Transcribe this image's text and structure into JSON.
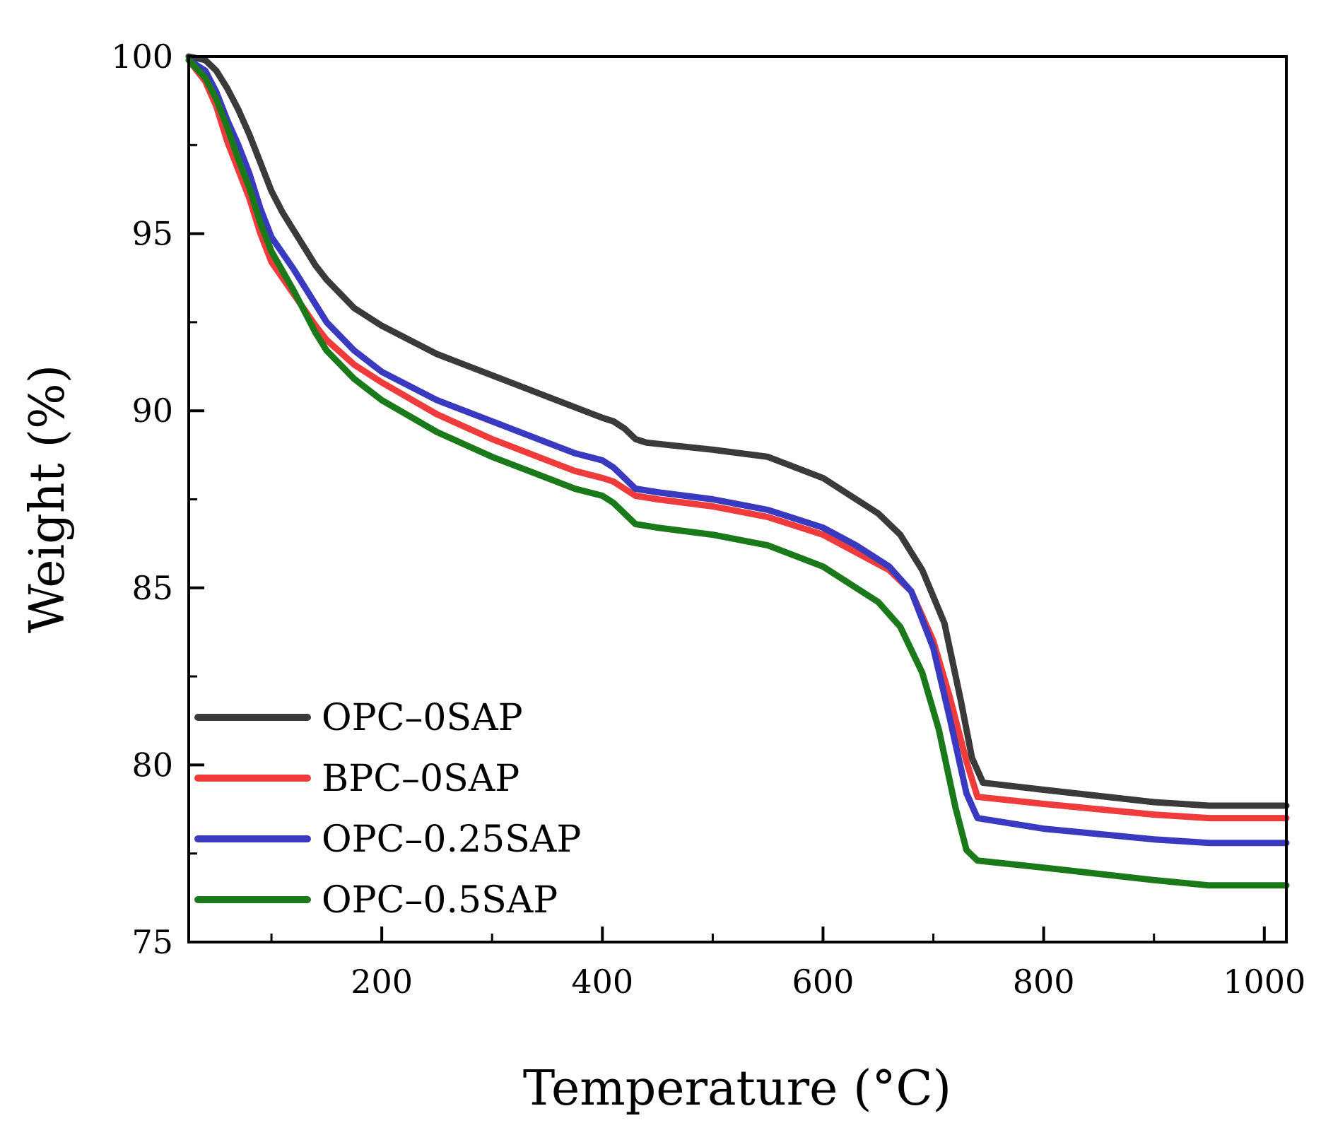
{
  "chart_data": {
    "type": "line",
    "title": "",
    "xlabel": "Temperature (°C)",
    "ylabel": "Weight (%)",
    "xlim": [
      25,
      1020
    ],
    "ylim": [
      75,
      100
    ],
    "x_ticks_major": [
      200,
      400,
      600,
      800,
      1000
    ],
    "x_ticks_minor": [
      100,
      300,
      500,
      700,
      900
    ],
    "y_ticks_major": [
      75,
      80,
      85,
      90,
      95,
      100
    ],
    "y_ticks_minor": [
      77.5,
      82.5,
      87.5,
      92.5,
      97.5
    ],
    "grid": false,
    "legend_position": "bottom-left",
    "series": [
      {
        "name": "OPC–0SAP",
        "color": "#3a3a3a",
        "points": [
          [
            25,
            100
          ],
          [
            40,
            99.9
          ],
          [
            50,
            99.6
          ],
          [
            60,
            99.1
          ],
          [
            70,
            98.5
          ],
          [
            80,
            97.8
          ],
          [
            90,
            97.0
          ],
          [
            100,
            96.2
          ],
          [
            110,
            95.6
          ],
          [
            120,
            95.1
          ],
          [
            130,
            94.6
          ],
          [
            140,
            94.1
          ],
          [
            150,
            93.7
          ],
          [
            175,
            92.9
          ],
          [
            200,
            92.4
          ],
          [
            250,
            91.6
          ],
          [
            300,
            91.0
          ],
          [
            350,
            90.4
          ],
          [
            375,
            90.1
          ],
          [
            400,
            89.8
          ],
          [
            410,
            89.7
          ],
          [
            420,
            89.5
          ],
          [
            430,
            89.2
          ],
          [
            440,
            89.1
          ],
          [
            500,
            88.9
          ],
          [
            550,
            88.7
          ],
          [
            600,
            88.1
          ],
          [
            630,
            87.5
          ],
          [
            650,
            87.1
          ],
          [
            670,
            86.5
          ],
          [
            690,
            85.5
          ],
          [
            710,
            84.0
          ],
          [
            725,
            81.8
          ],
          [
            735,
            80.2
          ],
          [
            745,
            79.5
          ],
          [
            800,
            79.3
          ],
          [
            900,
            78.95
          ],
          [
            950,
            78.85
          ],
          [
            1020,
            78.85
          ]
        ]
      },
      {
        "name": "BPC–0SAP",
        "color": "#ef3b3b",
        "points": [
          [
            25,
            99.9
          ],
          [
            40,
            99.3
          ],
          [
            50,
            98.6
          ],
          [
            60,
            97.6
          ],
          [
            70,
            96.8
          ],
          [
            80,
            96.0
          ],
          [
            90,
            95.0
          ],
          [
            100,
            94.2
          ],
          [
            120,
            93.3
          ],
          [
            140,
            92.4
          ],
          [
            150,
            92.0
          ],
          [
            175,
            91.3
          ],
          [
            200,
            90.8
          ],
          [
            250,
            89.9
          ],
          [
            300,
            89.2
          ],
          [
            350,
            88.6
          ],
          [
            375,
            88.3
          ],
          [
            400,
            88.1
          ],
          [
            410,
            88.0
          ],
          [
            420,
            87.8
          ],
          [
            430,
            87.6
          ],
          [
            450,
            87.5
          ],
          [
            500,
            87.3
          ],
          [
            550,
            87.0
          ],
          [
            600,
            86.5
          ],
          [
            630,
            86.0
          ],
          [
            660,
            85.5
          ],
          [
            680,
            84.9
          ],
          [
            700,
            83.5
          ],
          [
            715,
            81.9
          ],
          [
            730,
            80.1
          ],
          [
            740,
            79.1
          ],
          [
            800,
            78.9
          ],
          [
            900,
            78.6
          ],
          [
            950,
            78.5
          ],
          [
            1020,
            78.5
          ]
        ]
      },
      {
        "name": "OPC–0.25SAP",
        "color": "#3a3ac0",
        "points": [
          [
            25,
            99.9
          ],
          [
            40,
            99.6
          ],
          [
            50,
            99.0
          ],
          [
            60,
            98.2
          ],
          [
            70,
            97.5
          ],
          [
            80,
            96.7
          ],
          [
            90,
            95.7
          ],
          [
            100,
            94.9
          ],
          [
            120,
            94.0
          ],
          [
            140,
            93.0
          ],
          [
            150,
            92.5
          ],
          [
            175,
            91.7
          ],
          [
            200,
            91.1
          ],
          [
            250,
            90.3
          ],
          [
            300,
            89.7
          ],
          [
            350,
            89.1
          ],
          [
            375,
            88.8
          ],
          [
            400,
            88.6
          ],
          [
            410,
            88.4
          ],
          [
            420,
            88.1
          ],
          [
            430,
            87.8
          ],
          [
            450,
            87.7
          ],
          [
            500,
            87.5
          ],
          [
            550,
            87.2
          ],
          [
            600,
            86.7
          ],
          [
            630,
            86.2
          ],
          [
            660,
            85.6
          ],
          [
            680,
            84.9
          ],
          [
            700,
            83.3
          ],
          [
            715,
            81.3
          ],
          [
            730,
            79.2
          ],
          [
            740,
            78.5
          ],
          [
            800,
            78.2
          ],
          [
            900,
            77.9
          ],
          [
            950,
            77.8
          ],
          [
            1020,
            77.8
          ]
        ]
      },
      {
        "name": "OPC–0.5SAP",
        "color": "#1a7a1a",
        "points": [
          [
            25,
            99.9
          ],
          [
            40,
            99.4
          ],
          [
            50,
            98.8
          ],
          [
            60,
            98.0
          ],
          [
            70,
            97.1
          ],
          [
            80,
            96.3
          ],
          [
            90,
            95.3
          ],
          [
            100,
            94.5
          ],
          [
            120,
            93.4
          ],
          [
            140,
            92.2
          ],
          [
            150,
            91.7
          ],
          [
            175,
            90.9
          ],
          [
            200,
            90.3
          ],
          [
            250,
            89.4
          ],
          [
            300,
            88.7
          ],
          [
            350,
            88.1
          ],
          [
            375,
            87.8
          ],
          [
            400,
            87.6
          ],
          [
            410,
            87.4
          ],
          [
            420,
            87.1
          ],
          [
            430,
            86.8
          ],
          [
            450,
            86.7
          ],
          [
            500,
            86.5
          ],
          [
            550,
            86.2
          ],
          [
            600,
            85.6
          ],
          [
            630,
            85.0
          ],
          [
            650,
            84.6
          ],
          [
            670,
            83.9
          ],
          [
            690,
            82.6
          ],
          [
            705,
            81.0
          ],
          [
            720,
            78.8
          ],
          [
            730,
            77.6
          ],
          [
            740,
            77.3
          ],
          [
            800,
            77.1
          ],
          [
            900,
            76.75
          ],
          [
            950,
            76.6
          ],
          [
            1020,
            76.6
          ]
        ]
      }
    ]
  }
}
